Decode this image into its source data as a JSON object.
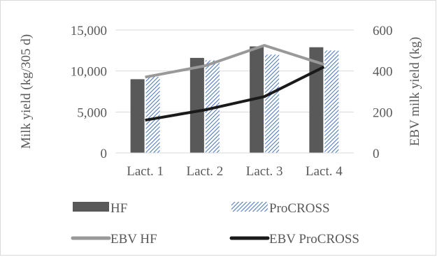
{
  "chart_data": {
    "type": "bar",
    "categories": [
      "Lact. 1",
      "Lact. 2",
      "Lact. 3",
      "Lact. 4"
    ],
    "series": [
      {
        "name": "HF",
        "kind": "bar",
        "axis": "left",
        "values": [
          9000,
          11600,
          13000,
          12900
        ],
        "color": "#595959",
        "pattern": "solid"
      },
      {
        "name": "ProCROSS",
        "kind": "bar",
        "axis": "left",
        "values": [
          9300,
          11300,
          12000,
          12500
        ],
        "color": "#4472c4",
        "pattern": "diagonal-hatch"
      },
      {
        "name": "EBV HF",
        "kind": "line",
        "axis": "right",
        "values": [
          370,
          425,
          525,
          432
        ],
        "color": "#999999"
      },
      {
        "name": "EBV ProCROSS",
        "kind": "line",
        "axis": "right",
        "values": [
          160,
          210,
          275,
          420
        ],
        "color": "#1a1a1a"
      }
    ],
    "ylabel": "Milk yield (kg/305 d)",
    "y2label": "EBV milk yield (kg)",
    "ylim": [
      0,
      15000
    ],
    "y2lim": [
      0,
      600
    ],
    "yticks": [
      "0",
      "5,000",
      "10,000",
      "15,000"
    ],
    "y2ticks": [
      "0",
      "200",
      "400",
      "600"
    ],
    "grid": true,
    "legend_position": "bottom"
  }
}
